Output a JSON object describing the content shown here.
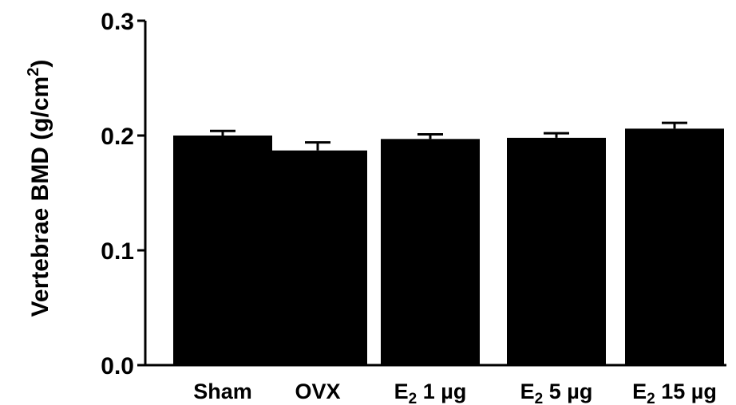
{
  "chart_data": {
    "type": "bar",
    "categories": [
      {
        "base": "Sham",
        "sub": "",
        "rest": ""
      },
      {
        "base": "OVX",
        "sub": "",
        "rest": ""
      },
      {
        "base": "E",
        "sub": "2",
        "rest": " 1 µg"
      },
      {
        "base": "E",
        "sub": "2",
        "rest": " 5 µg"
      },
      {
        "base": "E",
        "sub": "2",
        "rest": " 15 µg"
      }
    ],
    "values": [
      0.2,
      0.187,
      0.197,
      0.198,
      0.206
    ],
    "errors": [
      0.004,
      0.007,
      0.004,
      0.004,
      0.005
    ],
    "ylim": [
      0.0,
      0.3
    ],
    "yticks": [
      "0.0",
      "0.1",
      "0.2",
      "0.3"
    ],
    "ylabel": {
      "text": "Vertebrae BMD (g/cm",
      "sup": "2",
      "close": ")"
    },
    "xlabel": "",
    "title": "",
    "bar_color": "#000000",
    "grid": false,
    "legend": "none"
  }
}
